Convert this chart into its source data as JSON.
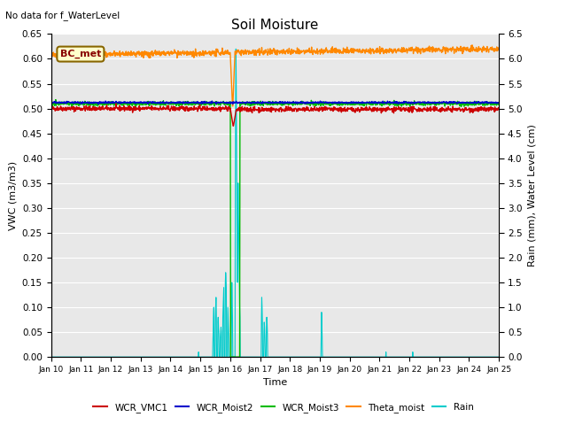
{
  "title": "Soil Moisture",
  "top_left_text": "No data for f_WaterLevel",
  "annotation_text": "BC_met",
  "xlabel": "Time",
  "ylabel_left": "VWC (m3/m3)",
  "ylabel_right": "Rain (mm), Water Level (cm)",
  "ylim_left": [
    0.0,
    0.65
  ],
  "ylim_right": [
    0.0,
    6.5
  ],
  "xtick_labels": [
    "Jan 10",
    "Jan 11",
    "Jan 12",
    "Jan 13",
    "Jan 14",
    "Jan 15",
    "Jan 16",
    "Jan 17",
    "Jan 18",
    "Jan 19",
    "Jan 20",
    "Jan 21",
    "Jan 22",
    "Jan 23",
    "Jan 24",
    "Jan 25"
  ],
  "yticks_left": [
    0.0,
    0.05,
    0.1,
    0.15,
    0.2,
    0.25,
    0.3,
    0.35,
    0.4,
    0.45,
    0.5,
    0.55,
    0.6,
    0.65
  ],
  "yticks_right": [
    0.0,
    0.5,
    1.0,
    1.5,
    2.0,
    2.5,
    3.0,
    3.5,
    4.0,
    4.5,
    5.0,
    5.5,
    6.0,
    6.5
  ],
  "colors": {
    "WCR_VMC1": "#cc0000",
    "WCR_Moist2": "#0000cc",
    "WCR_Moist3": "#00bb00",
    "Theta_moist": "#ff8800",
    "Rain": "#00cccc",
    "background": "#e8e8e8",
    "annotation_bg": "#ffffcc",
    "annotation_border": "#886600"
  },
  "legend_labels": [
    "WCR_VMC1",
    "WCR_Moist2",
    "WCR_Moist3",
    "Theta_moist",
    "Rain"
  ]
}
